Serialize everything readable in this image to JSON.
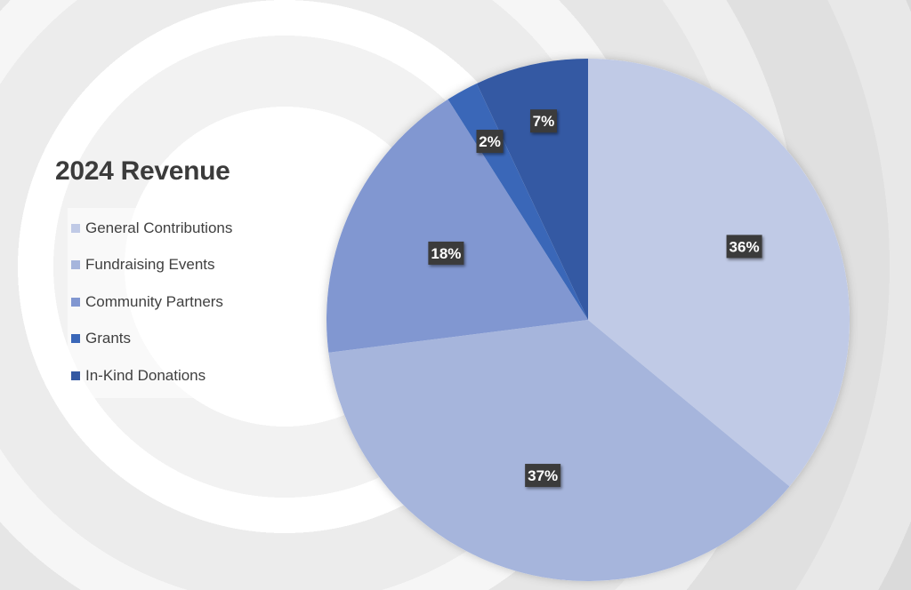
{
  "chart_data": {
    "type": "pie",
    "title": "2024 Revenue",
    "legend_position": "left",
    "categories": [
      "General Contributions",
      "Fundraising Events",
      "Community Partners",
      "Grants",
      "In-Kind Donations"
    ],
    "values": [
      36,
      37,
      18,
      2,
      7
    ],
    "labels": [
      "36%",
      "37%",
      "18%",
      "2%",
      "7%"
    ],
    "colors": [
      "#c0cae6",
      "#a6b5dc",
      "#8197d1",
      "#3a67b8",
      "#3459a3"
    ]
  },
  "legend": {
    "items": [
      {
        "label": "General Contributions",
        "color": "#c0cae6"
      },
      {
        "label": "Fundraising Events",
        "color": "#a6b5dc"
      },
      {
        "label": "Community Partners",
        "color": "#8197d1"
      },
      {
        "label": "Grants",
        "color": "#3a67b8"
      },
      {
        "label": "In-Kind Donations",
        "color": "#3459a3"
      }
    ]
  }
}
